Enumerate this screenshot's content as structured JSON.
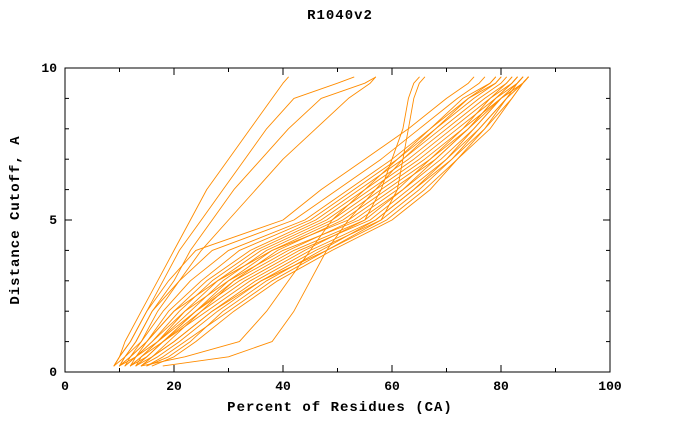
{
  "chart_data": {
    "type": "line",
    "title": "R1040v2",
    "xlabel": "Percent of Residues (CA)",
    "ylabel": "Distance Cutoff, A",
    "xlim": [
      0,
      100
    ],
    "ylim": [
      0,
      10
    ],
    "x_major_ticks": [
      0,
      20,
      40,
      60,
      80,
      100
    ],
    "x_minor_ticks": [
      10,
      30,
      50,
      70,
      90
    ],
    "y_major_ticks": [
      0,
      5,
      10
    ],
    "y_minor_ticks": [
      1,
      2,
      3,
      4,
      6,
      7,
      8,
      9
    ],
    "grid": false,
    "legend": "none",
    "line_color": "#FF8C00",
    "axis_color": "#000000",
    "background": "#FFFFFF",
    "y_levels": [
      0.2,
      0.5,
      1,
      2,
      3,
      4,
      5,
      6,
      7,
      8,
      9,
      9.5,
      9.7
    ],
    "series": [
      [
        9,
        10,
        12,
        15,
        19,
        24,
        40,
        47,
        55,
        63,
        70,
        74,
        75
      ],
      [
        10,
        11,
        13,
        16,
        21,
        27,
        42,
        50,
        58,
        65,
        72,
        76,
        77
      ],
      [
        10,
        12,
        14,
        18,
        23,
        30,
        44,
        52,
        60,
        67,
        74,
        78,
        79
      ],
      [
        11,
        12,
        15,
        19,
        25,
        32,
        45,
        53,
        61,
        68,
        75,
        79,
        80
      ],
      [
        11,
        13,
        15,
        20,
        26,
        34,
        46,
        54,
        62,
        69,
        76,
        80,
        81
      ],
      [
        12,
        13,
        16,
        21,
        27,
        35,
        47,
        55,
        63,
        70,
        77,
        81,
        82
      ],
      [
        12,
        14,
        17,
        22,
        28,
        36,
        48,
        56,
        64,
        71,
        78,
        82,
        83
      ],
      [
        13,
        14,
        17,
        23,
        29,
        37,
        49,
        57,
        65,
        72,
        79,
        83,
        84
      ],
      [
        13,
        15,
        18,
        24,
        30,
        38,
        50,
        58,
        66,
        73,
        80,
        84,
        85
      ],
      [
        14,
        16,
        19,
        25,
        31,
        39,
        51,
        59,
        67,
        74,
        80,
        84,
        85
      ],
      [
        10,
        12,
        15,
        20,
        28,
        38,
        52,
        60,
        68,
        74,
        79,
        82,
        83
      ],
      [
        11,
        13,
        16,
        22,
        30,
        40,
        54,
        62,
        69,
        75,
        80,
        83,
        84
      ],
      [
        12,
        15,
        18,
        25,
        33,
        43,
        56,
        63,
        70,
        76,
        81,
        83,
        84
      ],
      [
        14,
        17,
        21,
        28,
        36,
        46,
        58,
        65,
        71,
        77,
        81,
        84,
        85
      ],
      [
        15,
        18,
        22,
        30,
        38,
        48,
        59,
        66,
        72,
        77,
        82,
        84,
        85
      ],
      [
        10,
        13,
        17,
        24,
        31,
        41,
        53,
        61,
        67,
        73,
        78,
        81,
        82
      ],
      [
        12,
        14,
        18,
        26,
        34,
        44,
        55,
        62,
        68,
        74,
        79,
        82,
        83
      ],
      [
        13,
        16,
        20,
        27,
        35,
        45,
        57,
        64,
        70,
        75,
        80,
        83,
        84
      ],
      [
        15,
        19,
        23,
        29,
        37,
        47,
        57,
        64,
        71,
        76,
        81,
        84,
        85
      ],
      [
        16,
        20,
        24,
        31,
        39,
        49,
        60,
        67,
        72,
        78,
        82,
        84,
        85
      ],
      [
        9,
        10,
        11,
        14,
        17,
        20,
        23,
        26,
        30,
        34,
        38,
        40,
        41
      ],
      [
        9,
        10,
        12,
        15,
        18,
        21,
        25,
        29,
        33,
        37,
        42,
        50,
        53
      ],
      [
        9,
        11,
        13,
        16,
        20,
        23,
        27,
        31,
        36,
        41,
        47,
        55,
        57
      ],
      [
        10,
        11,
        14,
        17,
        21,
        25,
        30,
        35,
        40,
        46,
        52,
        56,
        57
      ],
      [
        13,
        15,
        18,
        24,
        32,
        42,
        55,
        58,
        60,
        62,
        63,
        64,
        65
      ],
      [
        14,
        16,
        20,
        27,
        36,
        48,
        58,
        61,
        62,
        63,
        64,
        65,
        66
      ],
      [
        18,
        30,
        38,
        42,
        45,
        48,
        52,
        57,
        62,
        68,
        74,
        79,
        80
      ],
      [
        14,
        22,
        32,
        37,
        41,
        45,
        49,
        55,
        61,
        67,
        73,
        78,
        79
      ]
    ]
  }
}
